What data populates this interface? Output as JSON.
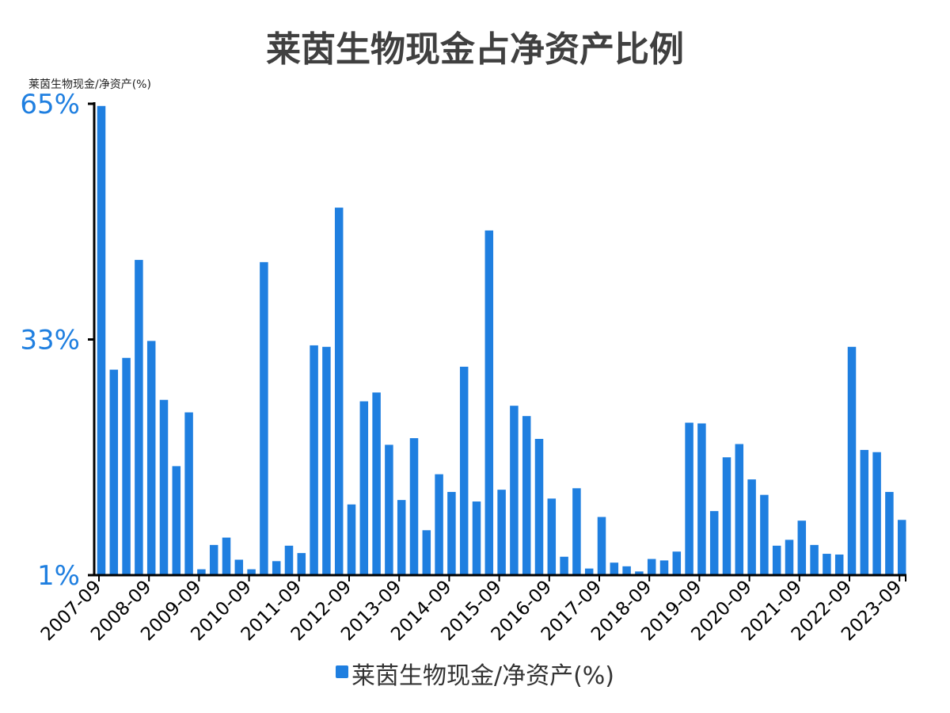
{
  "colors": {
    "bar": "#1f7fe0",
    "axis": "#000000",
    "tick_label": "#1f7fe0",
    "title": "#404040"
  },
  "chart_data": {
    "type": "bar",
    "title": "莱茵生物现金占净资产比例",
    "ylabel": "莱茵生物现金/净资产(%)",
    "legend": {
      "entries": [
        "莱茵生物现金/净资产(%)"
      ],
      "position": "bottom"
    },
    "ylim": [
      1,
      65
    ],
    "y_ticks": [
      {
        "value": 65,
        "label": "65%"
      },
      {
        "value": 33,
        "label": "33%"
      },
      {
        "value": 1,
        "label": "1%"
      }
    ],
    "x_tick_labels": [
      "2007-09",
      "2008-09",
      "2009-09",
      "2010-09",
      "2011-09",
      "2012-09",
      "2013-09",
      "2014-09",
      "2015-09",
      "2016-09",
      "2017-09",
      "2018-09",
      "2019-09",
      "2020-09",
      "2021-09",
      "2022-09",
      "2023-09"
    ],
    "grid": false,
    "series": [
      {
        "name": "莱茵生物现金/净资产(%)",
        "values": [
          64.7,
          28.9,
          30.5,
          43.8,
          32.8,
          24.8,
          15.8,
          23.1,
          1.8,
          5.1,
          6.1,
          3.1,
          1.8,
          43.5,
          2.9,
          5.0,
          4.0,
          32.2,
          32.0,
          50.9,
          10.6,
          24.6,
          25.8,
          18.7,
          11.2,
          19.6,
          7.1,
          14.7,
          12.3,
          29.3,
          11.0,
          47.8,
          12.6,
          24.0,
          22.6,
          19.5,
          11.4,
          3.5,
          12.8,
          1.9,
          8.9,
          2.7,
          2.2,
          1.5,
          3.2,
          3.0,
          4.2,
          21.7,
          21.6,
          9.7,
          17.0,
          18.8,
          14.0,
          11.9,
          5.0,
          5.8,
          8.4,
          5.1,
          3.9,
          3.8,
          32.0,
          18.0,
          17.7,
          12.3,
          8.5
        ]
      }
    ]
  }
}
